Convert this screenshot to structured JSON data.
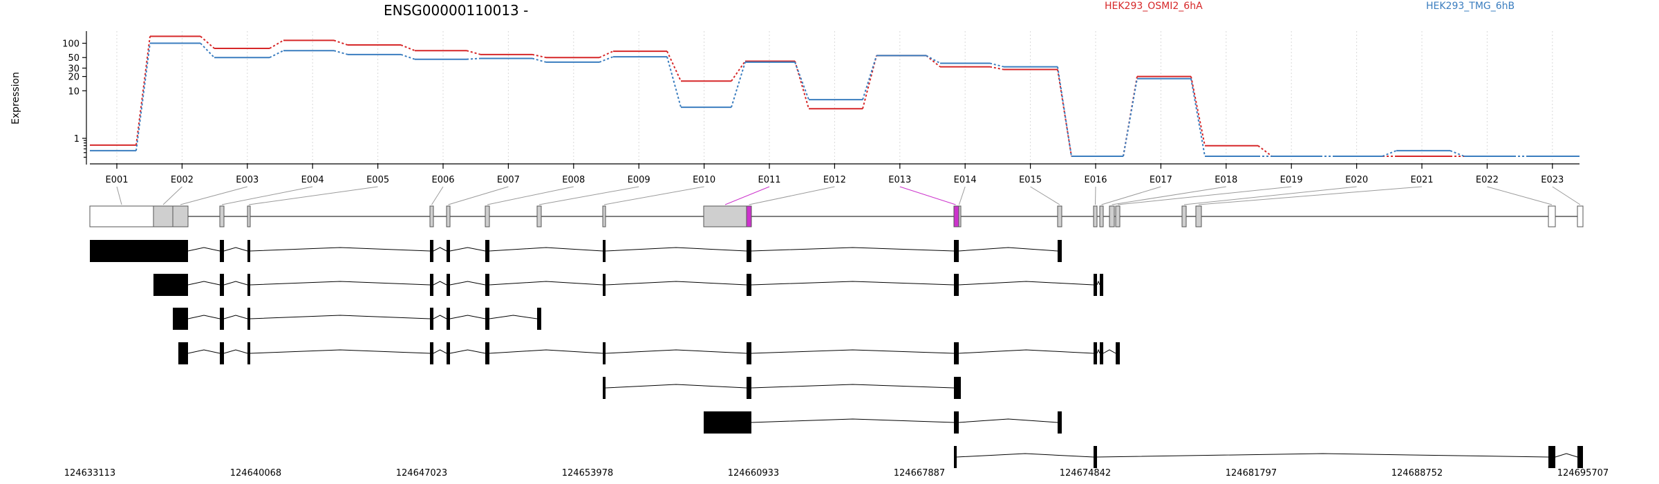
{
  "chart_data": {
    "type": "line",
    "title": "ENSG00000110013 -",
    "ylabel": "Expression",
    "y_scale": "log",
    "ylim": [
      0.3,
      180
    ],
    "y_ticks": [
      "1",
      "10",
      "20",
      "30",
      "50",
      "100"
    ],
    "grid": "vertical dotted",
    "legend_placement": "top-right",
    "categories": [
      "E001",
      "E002",
      "E003",
      "E004",
      "E005",
      "E006",
      "E007",
      "E008",
      "E009",
      "E010",
      "E011",
      "E012",
      "E013",
      "E014",
      "E015",
      "E016",
      "E017",
      "E018",
      "E019",
      "E020",
      "E021",
      "E022",
      "E023"
    ],
    "series": [
      {
        "name": "HEK293_OSMI2_6hA",
        "color": "#d62728",
        "values": [
          0.72,
          140,
          78,
          115,
          92,
          70,
          58,
          50,
          68,
          16,
          42,
          4.2,
          55,
          32,
          28,
          0.42,
          20,
          0.7,
          0.42,
          0.42,
          0.42,
          0.42,
          0.42
        ]
      },
      {
        "name": "HEK293_TMG_6hB",
        "color": "#3a7dbf",
        "values": [
          0.55,
          100,
          50,
          70,
          58,
          46,
          48,
          40,
          52,
          4.5,
          40,
          6.5,
          55,
          38,
          32,
          0.42,
          18,
          0.42,
          0.42,
          0.42,
          0.55,
          0.42,
          0.42
        ]
      }
    ],
    "genomic_coordinates": [
      "124633113",
      "124640068",
      "124647023",
      "124653978",
      "124660933",
      "124667887",
      "124674842",
      "124681797",
      "124688752",
      "124695707"
    ],
    "highlight_color": "#cc33cc"
  }
}
